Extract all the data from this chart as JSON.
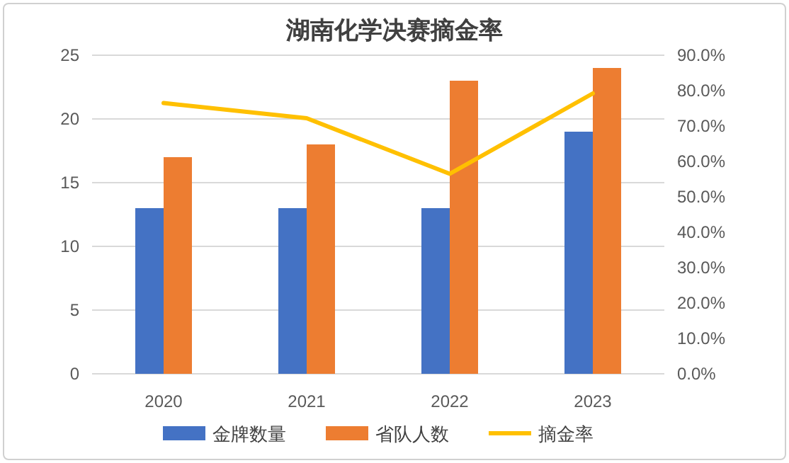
{
  "chart_data": {
    "type": "bar",
    "title": "湖南化学决赛摘金率",
    "categories": [
      "2020",
      "2021",
      "2022",
      "2023"
    ],
    "series": [
      {
        "name": "金牌数量",
        "color": "#4472c4",
        "values": [
          13,
          13,
          13,
          19
        ]
      },
      {
        "name": "省队人数",
        "color": "#ed7d31",
        "values": [
          17,
          18,
          23,
          24
        ]
      },
      {
        "name": "摘金率",
        "type": "line",
        "axis": "y2",
        "color": "#ffc000",
        "values": [
          76.5,
          72.2,
          56.5,
          79.2
        ]
      }
    ],
    "ylim": [
      0,
      25
    ],
    "yticks": [
      0,
      5,
      10,
      15,
      20,
      25
    ],
    "y2lim": [
      0,
      90
    ],
    "y2ticks": [
      {
        "value": 0,
        "label": "0.0%"
      },
      {
        "value": 10,
        "label": "10.0%"
      },
      {
        "value": 20,
        "label": "20.0%"
      },
      {
        "value": 30,
        "label": "30.0%"
      },
      {
        "value": 40,
        "label": "40.0%"
      },
      {
        "value": 50,
        "label": "50.0%"
      },
      {
        "value": 60,
        "label": "60.0%"
      },
      {
        "value": 70,
        "label": "70.0%"
      },
      {
        "value": 80,
        "label": "80.0%"
      },
      {
        "value": 90,
        "label": "90.0%"
      }
    ],
    "grid": "y",
    "legend": "bottom",
    "marker": "none",
    "line_style": "solid"
  }
}
